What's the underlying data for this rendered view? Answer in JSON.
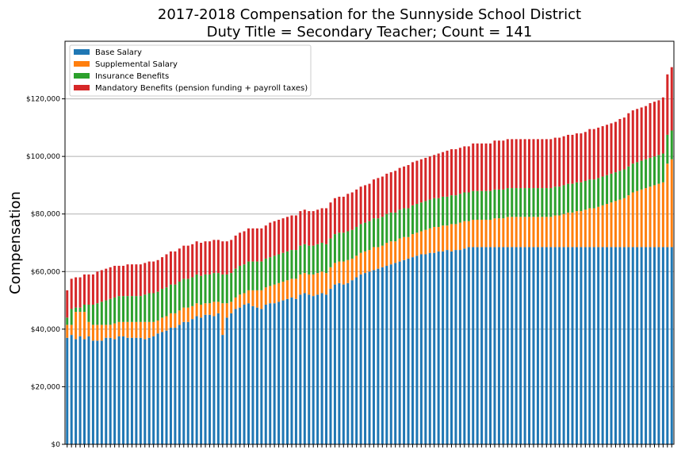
{
  "chart_data": {
    "type": "bar",
    "stacked": true,
    "title_lines": [
      "2017-2018 Compensation for the Sunnyside School District",
      "Duty Title = Secondary Teacher; Count = 141"
    ],
    "xlabel": "",
    "ylabel": "Compensation",
    "ylim": [
      0,
      140000
    ],
    "yticks": [
      0,
      20000,
      40000,
      60000,
      80000,
      100000,
      120000
    ],
    "ytick_labels": [
      "$0",
      "$20,000",
      "$40,000",
      "$60,000",
      "$80,000",
      "$100,000",
      "$120,000"
    ],
    "grid": "horizontal",
    "legend_position": "top-left",
    "count": 141,
    "series": [
      {
        "name": "Base Salary",
        "color": "#1f77b4",
        "values": [
          37000,
          38000,
          36500,
          37500,
          36500,
          37500,
          36000,
          36000,
          36000,
          37000,
          37000,
          36500,
          37500,
          37500,
          37000,
          37000,
          37000,
          37000,
          36500,
          37000,
          37500,
          38500,
          39000,
          39500,
          40500,
          40500,
          41500,
          42500,
          42500,
          43500,
          44500,
          44000,
          45000,
          45000,
          44500,
          45500,
          38000,
          44000,
          45500,
          47000,
          47500,
          48500,
          49000,
          48000,
          47500,
          47000,
          48500,
          49000,
          49000,
          49500,
          50000,
          50500,
          51000,
          50500,
          52000,
          52500,
          52000,
          51500,
          52000,
          52500,
          52000,
          54000,
          55500,
          56000,
          55500,
          56000,
          57000,
          58000,
          59000,
          59500,
          60000,
          60500,
          61000,
          61500,
          62000,
          62500,
          63000,
          63500,
          64000,
          64500,
          65000,
          65500,
          66000,
          66000,
          66500,
          66500,
          67000,
          67000,
          67500,
          67000,
          67500,
          67500,
          68000,
          68500,
          68500,
          68500,
          68500,
          68500,
          68500,
          68500,
          68500,
          68500,
          68500,
          68500,
          68500,
          68500,
          68500,
          68500,
          68500,
          68500,
          68500,
          68500,
          68500,
          68500,
          68500,
          68500,
          68500,
          68500,
          68500,
          68500,
          68500,
          68500,
          68500,
          68500,
          68500,
          68500,
          68500,
          68500,
          68500,
          68500,
          68500,
          68500,
          68500,
          68500,
          68500,
          68500,
          68500,
          68500,
          68500,
          68500,
          68500
        ]
      },
      {
        "name": "Supplemental Salary",
        "color": "#ff7f0e",
        "values": [
          4500,
          3500,
          9500,
          8500,
          9500,
          5000,
          5500,
          5500,
          5500,
          4500,
          4500,
          5500,
          5000,
          5000,
          5500,
          5500,
          5500,
          5500,
          6000,
          5500,
          5000,
          4500,
          5000,
          5000,
          5000,
          5000,
          5000,
          5000,
          5000,
          4500,
          4500,
          4500,
          4000,
          4000,
          5000,
          4000,
          11000,
          5000,
          4000,
          4000,
          4500,
          4000,
          4500,
          5500,
          6000,
          6500,
          6000,
          6000,
          6500,
          6500,
          6500,
          6500,
          6500,
          7000,
          7000,
          7000,
          7000,
          7500,
          7500,
          7500,
          7500,
          7500,
          7500,
          7500,
          8000,
          8000,
          7500,
          7500,
          7500,
          7500,
          7500,
          8000,
          7500,
          7500,
          8000,
          8000,
          7500,
          8000,
          8000,
          7500,
          8000,
          8000,
          8000,
          8500,
          8500,
          9000,
          8500,
          9000,
          8500,
          9500,
          9000,
          9500,
          9500,
          9000,
          9500,
          9500,
          9500,
          9500,
          9500,
          10000,
          10000,
          10000,
          10500,
          10500,
          10500,
          10500,
          10500,
          10500,
          10500,
          10500,
          10500,
          10500,
          10500,
          11000,
          11000,
          11500,
          12000,
          12000,
          12500,
          12500,
          13000,
          13500,
          13500,
          14000,
          14500,
          15000,
          15500,
          16000,
          16500,
          17000,
          18000,
          19000,
          19500,
          20000,
          20500,
          21000,
          21500,
          22000,
          22500,
          29000,
          30500
        ]
      },
      {
        "name": "Insurance Benefits",
        "color": "#2ca02c",
        "values": [
          2500,
          5500,
          1500,
          1500,
          2500,
          6000,
          7000,
          7500,
          8000,
          8500,
          9000,
          9000,
          9000,
          9000,
          9000,
          9000,
          9000,
          9000,
          9500,
          10000,
          10000,
          10000,
          10000,
          10000,
          10000,
          10000,
          10000,
          10000,
          10000,
          10000,
          10000,
          10000,
          10000,
          10000,
          10000,
          10000,
          10000,
          10000,
          10000,
          10000,
          10000,
          10000,
          10000,
          10000,
          10000,
          10000,
          10000,
          10000,
          10000,
          10000,
          10000,
          10000,
          10000,
          10000,
          10000,
          10000,
          10000,
          10000,
          10000,
          10000,
          10000,
          10000,
          10000,
          10000,
          10000,
          10000,
          10000,
          10000,
          10000,
          10000,
          10000,
          10000,
          10000,
          10000,
          10000,
          10000,
          10000,
          10000,
          10000,
          10000,
          10000,
          10000,
          10000,
          10000,
          10000,
          10000,
          10000,
          10000,
          10000,
          10000,
          10000,
          10000,
          10000,
          10000,
          10000,
          10000,
          10000,
          10000,
          10000,
          10000,
          10000,
          10000,
          10000,
          10000,
          10000,
          10000,
          10000,
          10000,
          10000,
          10000,
          10000,
          10000,
          10000,
          10000,
          10000,
          10000,
          10000,
          10000,
          10000,
          10000,
          10000,
          10000,
          10000,
          10000,
          10000,
          10000,
          10000,
          10000,
          10000,
          10000,
          10000,
          10000,
          10000,
          10000,
          10000,
          10000,
          10000,
          10000,
          10000,
          10000,
          10000
        ]
      },
      {
        "name": "Mandatory Benefits (pension funding + payroll taxes)",
        "color": "#d62728",
        "values": [
          9500,
          10500,
          10500,
          10500,
          10500,
          10500,
          10500,
          11000,
          11000,
          11000,
          11000,
          11000,
          10500,
          10500,
          11000,
          11000,
          11000,
          11000,
          11000,
          11000,
          11000,
          11000,
          11000,
          11500,
          11500,
          11500,
          11500,
          11500,
          11500,
          11500,
          11500,
          11500,
          11500,
          11500,
          11500,
          11500,
          11500,
          11500,
          11500,
          11500,
          11500,
          11500,
          11500,
          11500,
          11500,
          11500,
          11500,
          12000,
          12000,
          12000,
          12000,
          12000,
          12000,
          12000,
          12000,
          12000,
          12000,
          12000,
          12000,
          12000,
          12500,
          12500,
          12500,
          12500,
          12500,
          13000,
          13000,
          13000,
          13000,
          13000,
          13000,
          13500,
          14000,
          14000,
          14000,
          14000,
          14500,
          14500,
          14500,
          15000,
          15000,
          15000,
          15000,
          15000,
          15000,
          15000,
          15500,
          15500,
          16000,
          16000,
          16000,
          16000,
          16000,
          16000,
          16500,
          16500,
          16500,
          16500,
          16500,
          17000,
          17000,
          17000,
          17000,
          17000,
          17000,
          17000,
          17000,
          17000,
          17000,
          17000,
          17000,
          17000,
          17000,
          17000,
          17000,
          17000,
          17000,
          17000,
          17000,
          17000,
          17000,
          17500,
          17500,
          17500,
          17500,
          17500,
          17500,
          17500,
          18000,
          18000,
          18500,
          18500,
          18500,
          18500,
          18500,
          19000,
          19000,
          19000,
          19500,
          21000,
          22000
        ]
      }
    ]
  }
}
